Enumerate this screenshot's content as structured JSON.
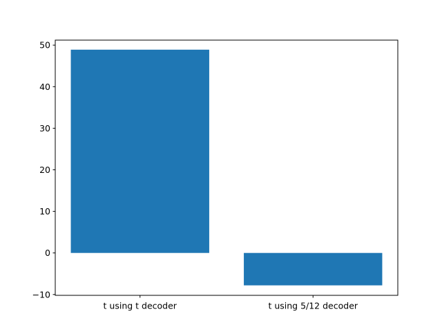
{
  "chart_data": {
    "type": "bar",
    "categories": [
      "t using t decoder",
      "t using 5/12 decoder"
    ],
    "values": [
      48.9,
      -7.8
    ],
    "title": "",
    "xlabel": "",
    "ylabel": "",
    "ylim": [
      -10.2,
      51.2
    ],
    "yticks": [
      -10,
      0,
      10,
      20,
      30,
      40,
      50
    ],
    "ytick_labels": [
      "−10",
      "0",
      "10",
      "20",
      "30",
      "40",
      "50"
    ],
    "grid": false,
    "bar_color": "#1f77b4"
  }
}
